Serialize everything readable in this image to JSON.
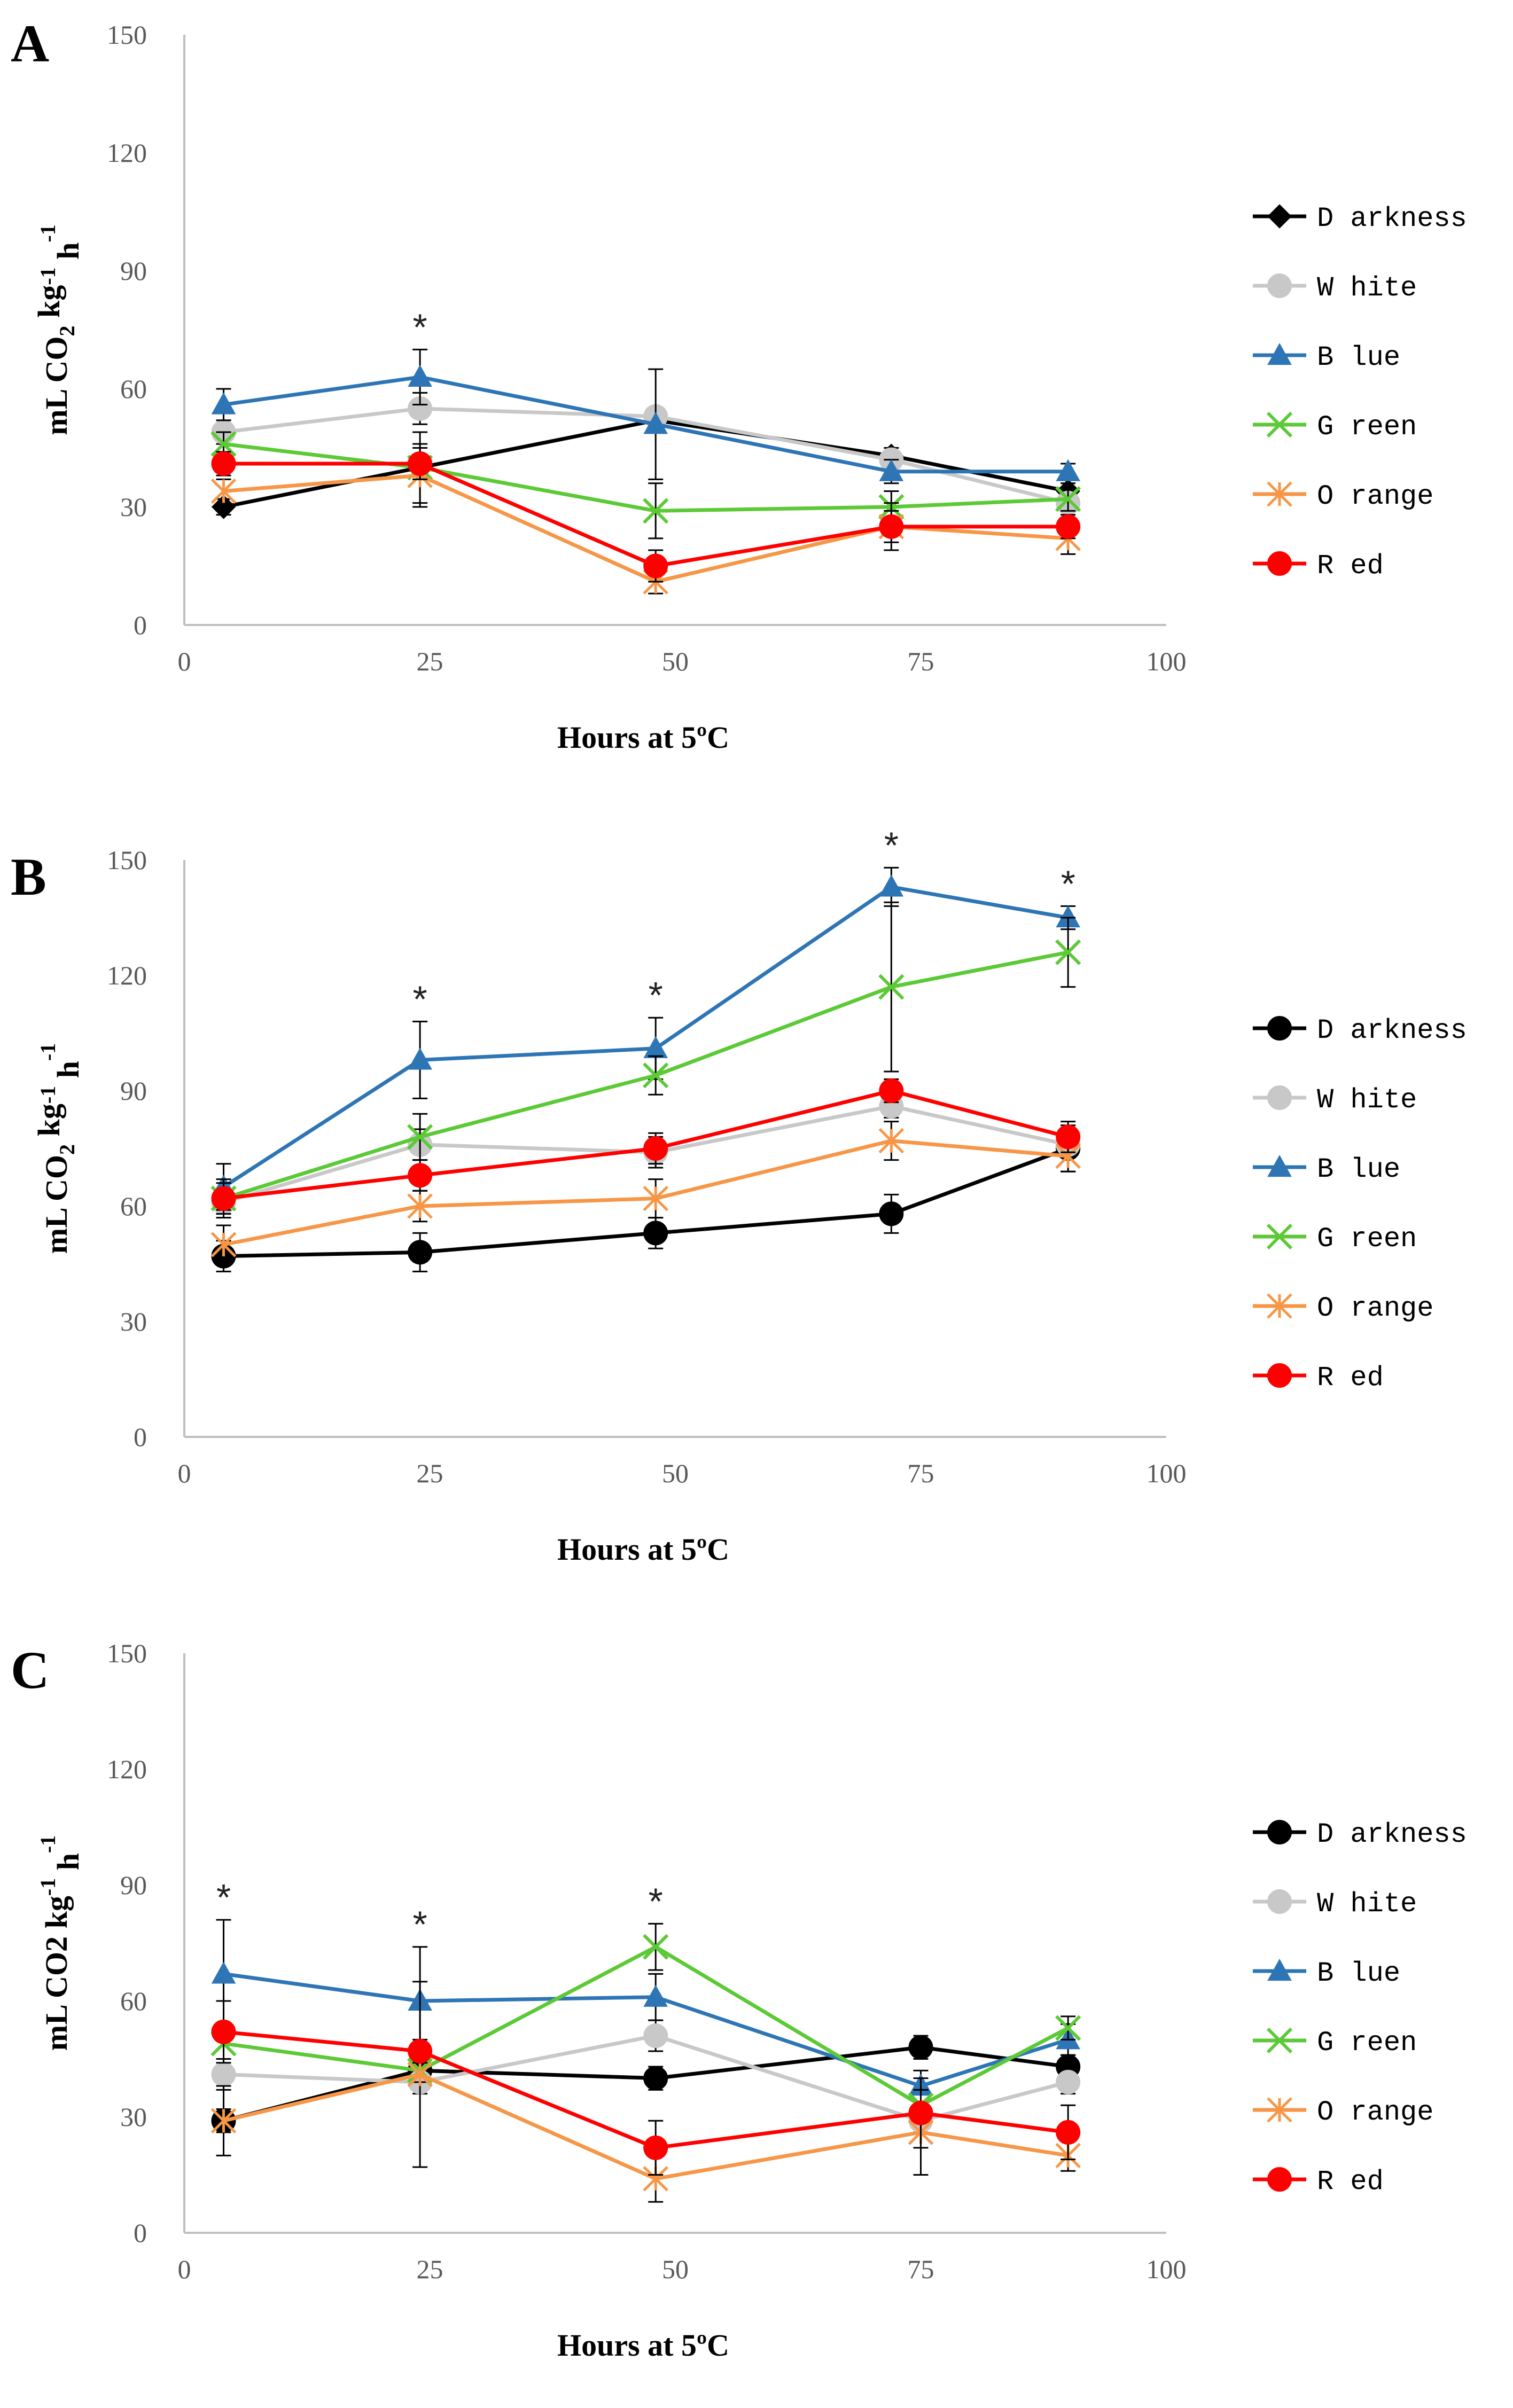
{
  "chart_data": [
    {
      "type": "line",
      "panel": "A",
      "ylabel": "mL CO",
      "ylabel_sub": "2",
      "ylabel_unit": " kg",
      "ylabel_sup1": "-1",
      "ylabel_h": " h",
      "ylabel_sup2": "-1",
      "xlabel": "Hours at 5ºC",
      "ylim": [
        0,
        150
      ],
      "xlim": [
        0,
        100
      ],
      "yticks": [
        0,
        30,
        60,
        90,
        120,
        150
      ],
      "xticks": [
        0,
        25,
        50,
        75,
        100
      ],
      "x": [
        4,
        24,
        48,
        72,
        90
      ],
      "significance_x": [
        24
      ],
      "series": [
        {
          "name": "Darkness",
          "color": "#000000",
          "marker": "diamond",
          "values": [
            30,
            40,
            52,
            43,
            34
          ],
          "errors": [
            2,
            9,
            3,
            2,
            2
          ]
        },
        {
          "name": "White",
          "color": "#c8c8c8",
          "marker": "circle",
          "values": [
            49,
            55,
            53,
            42,
            31
          ],
          "errors": [
            3,
            4,
            2,
            2,
            2
          ]
        },
        {
          "name": "Blue",
          "color": "#2e75b6",
          "marker": "triangle",
          "values": [
            56,
            63,
            51,
            39,
            39
          ],
          "errors": [
            4,
            7,
            14,
            3,
            2
          ]
        },
        {
          "name": "Green",
          "color": "#5cc936",
          "marker": "x",
          "values": [
            46,
            40,
            29,
            30,
            32
          ],
          "errors": [
            3,
            3,
            7,
            4,
            3
          ]
        },
        {
          "name": "Orange",
          "color": "#f79646",
          "marker": "star",
          "values": [
            34,
            38,
            11,
            25,
            22
          ],
          "errors": [
            3,
            8,
            3,
            4,
            4
          ]
        },
        {
          "name": "Red",
          "color": "#ff0000",
          "marker": "circle",
          "values": [
            41,
            41,
            15,
            25,
            25
          ],
          "errors": [
            3,
            4,
            4,
            6,
            3
          ]
        }
      ]
    },
    {
      "type": "line",
      "panel": "B",
      "ylabel": "mL CO",
      "ylabel_sub": "2",
      "ylabel_unit": " kg",
      "ylabel_sup1": "-1",
      "ylabel_h": " h",
      "ylabel_sup2": "-1",
      "xlabel": "Hours at 5ºC",
      "ylim": [
        0,
        150
      ],
      "xlim": [
        0,
        100
      ],
      "yticks": [
        0,
        30,
        60,
        90,
        120,
        150
      ],
      "xticks": [
        0,
        25,
        50,
        75,
        100
      ],
      "x": [
        4,
        24,
        48,
        72,
        90
      ],
      "significance_x": [
        24,
        48,
        72,
        90
      ],
      "series": [
        {
          "name": "Darkness",
          "color": "#000000",
          "marker": "circle",
          "values": [
            47,
            48,
            53,
            58,
            75
          ],
          "errors": [
            4,
            5,
            4,
            5,
            6
          ]
        },
        {
          "name": "White",
          "color": "#c8c8c8",
          "marker": "circle",
          "values": [
            61,
            76,
            74,
            86,
            76
          ],
          "errors": [
            3,
            4,
            4,
            3,
            3
          ]
        },
        {
          "name": "Blue",
          "color": "#2e75b6",
          "marker": "triangle",
          "values": [
            65,
            98,
            101,
            143,
            135
          ],
          "errors": [
            6,
            10,
            8,
            5,
            3
          ]
        },
        {
          "name": "Green",
          "color": "#5cc936",
          "marker": "x",
          "values": [
            62,
            78,
            94,
            117,
            126
          ],
          "errors": [
            5,
            6,
            5,
            22,
            9
          ]
        },
        {
          "name": "Orange",
          "color": "#f79646",
          "marker": "star",
          "values": [
            50,
            60,
            62,
            77,
            73
          ],
          "errors": [
            5,
            4,
            5,
            5,
            4
          ]
        },
        {
          "name": "Red",
          "color": "#ff0000",
          "marker": "circle",
          "values": [
            62,
            68,
            75,
            90,
            78
          ],
          "errors": [
            4,
            4,
            4,
            3,
            4
          ]
        }
      ]
    },
    {
      "type": "line",
      "panel": "C",
      "ylabel": "mL CO2 kg",
      "ylabel_sub": "",
      "ylabel_unit": "",
      "ylabel_sup1": "-1",
      "ylabel_h": " h",
      "ylabel_sup2": "-1",
      "xlabel": "Hours at 5ºC",
      "ylim": [
        0,
        150
      ],
      "xlim": [
        0,
        100
      ],
      "yticks": [
        0,
        30,
        60,
        90,
        120,
        150
      ],
      "xticks": [
        0,
        25,
        50,
        75,
        100
      ],
      "x": [
        4,
        24,
        48,
        75,
        90
      ],
      "significance_x": [
        4,
        24,
        48
      ],
      "series": [
        {
          "name": "Darkness",
          "color": "#000000",
          "marker": "circle",
          "values": [
            29,
            42,
            40,
            48,
            43
          ],
          "errors": [
            3,
            3,
            3,
            3,
            3
          ]
        },
        {
          "name": "White",
          "color": "#c8c8c8",
          "marker": "circle",
          "values": [
            41,
            39,
            51,
            29,
            39
          ],
          "errors": [
            4,
            3,
            4,
            3,
            3
          ]
        },
        {
          "name": "Blue",
          "color": "#2e75b6",
          "marker": "triangle",
          "values": [
            67,
            60,
            61,
            38,
            50
          ],
          "errors": [
            14,
            14,
            6,
            4,
            4
          ]
        },
        {
          "name": "Green",
          "color": "#5cc936",
          "marker": "x",
          "values": [
            49,
            42,
            74,
            33,
            53
          ],
          "errors": [
            4,
            3,
            6,
            4,
            3
          ]
        },
        {
          "name": "Orange",
          "color": "#f79646",
          "marker": "star",
          "values": [
            29,
            41,
            14,
            26,
            20
          ],
          "errors": [
            9,
            24,
            6,
            11,
            4
          ]
        },
        {
          "name": "Red",
          "color": "#ff0000",
          "marker": "circle",
          "values": [
            52,
            47,
            22,
            31,
            26
          ],
          "errors": [
            8,
            3,
            7,
            9,
            7
          ]
        }
      ]
    }
  ],
  "legend_labels": [
    "D arkness",
    "W  hite",
    "B lue",
    "G reen",
    "O range",
    "R ed"
  ],
  "significance_mark": "*"
}
